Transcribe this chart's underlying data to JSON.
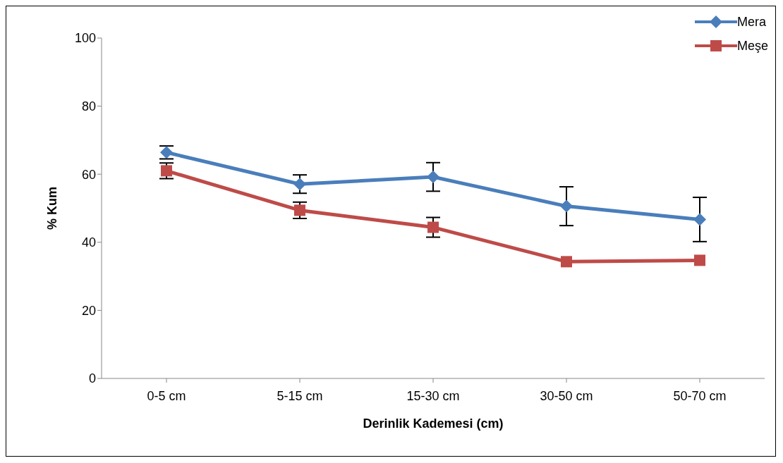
{
  "chart_data": {
    "type": "line",
    "xlabel": "Derinlik Kademesi (cm)",
    "ylabel": "% Kum",
    "categories": [
      "0-5 cm",
      "5-15 cm",
      "15-30 cm",
      "30-50 cm",
      "50-70 cm"
    ],
    "series": [
      {
        "name": "Mera",
        "color": "#4a7ebb",
        "marker": "diamond",
        "values": [
          66.4,
          57.1,
          59.2,
          50.6,
          46.7
        ],
        "errors": [
          1.9,
          2.7,
          4.2,
          5.7,
          6.5
        ]
      },
      {
        "name": "Meşe",
        "color": "#be4b48",
        "marker": "square",
        "values": [
          61.0,
          49.4,
          44.4,
          34.3,
          34.7
        ],
        "errors": [
          2.3,
          2.4,
          2.9,
          null,
          null
        ]
      }
    ],
    "ylim": [
      0,
      100
    ],
    "yticks": [
      0,
      20,
      40,
      60,
      80,
      100
    ],
    "grid": false,
    "legend": "top right",
    "line_style": "solid"
  }
}
